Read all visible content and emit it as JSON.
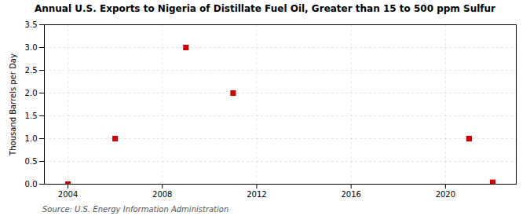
{
  "chart_data": {
    "type": "scatter",
    "title": "Annual U.S. Exports to Nigeria of Distillate Fuel Oil, Greater than 15 to 500 ppm Sulfur",
    "ylabel": "Thousand Barrels per Day",
    "annotation": "Source: U.S. Energy Information Administration",
    "x": [
      2004,
      2006,
      2009,
      2011,
      2021,
      2022
    ],
    "values": [
      0.0,
      1.0,
      3.0,
      2.0,
      1.0,
      0.04
    ],
    "color": "#cc0000",
    "marker": "square",
    "xlim": [
      2003,
      2023
    ],
    "ylim": [
      0,
      3.5
    ],
    "xticks": [
      2004,
      2008,
      2012,
      2016,
      2020
    ],
    "yticks": [
      {
        "value": 0.0,
        "label": "0.0"
      },
      0.5,
      {
        "value": 1.0,
        "label": "1.0"
      },
      1.5,
      {
        "value": 2.0,
        "label": "2.0"
      },
      2.5,
      {
        "value": 3.0,
        "label": "3.0"
      },
      3.5
    ],
    "grid": true
  }
}
